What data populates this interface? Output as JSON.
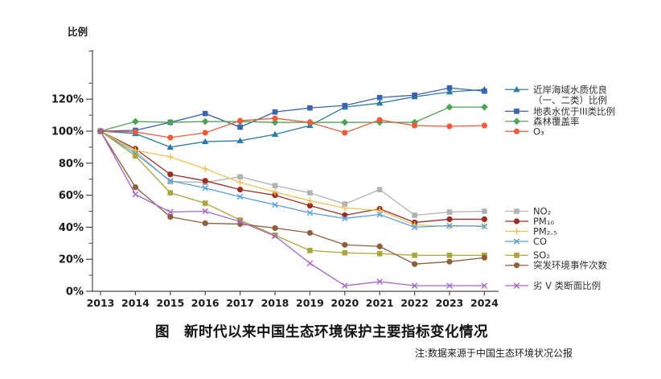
{
  "title": "图　新时代以来中国生态环境保护主要指标变化情况",
  "note": "注:数据来源于中国生态环境状况公报",
  "chart_data": {
    "type": "line",
    "title": "图　新时代以来中国生态环境保护主要指标变化情况",
    "note": "注:数据来源于中国生态环境状况公报",
    "ylabel": "比例",
    "xlabel": "",
    "x": [
      2013,
      2014,
      2015,
      2016,
      2017,
      2018,
      2019,
      2020,
      2021,
      2022,
      2023,
      2024
    ],
    "ylim": [
      0,
      150
    ],
    "ytick_major_step": 20,
    "ytick_minor_step": 10,
    "ytick_suffix": "%",
    "grid": false,
    "legend_position": "right",
    "baseline_note": "values are percentages relative to 2013 = 100%",
    "series": [
      {
        "id": "coastal-water",
        "name": "近岸海域水质优良（一、二类）比例",
        "legend_lines": [
          "近岸海域水质优良",
          "（一、二类）比例"
        ],
        "color": "#2e7ca3",
        "marker": "triangle",
        "values": [
          100,
          98.5,
          90,
          93.5,
          94,
          98,
          103.5,
          115,
          117.5,
          121.5,
          124.5,
          126
        ]
      },
      {
        "id": "surface-water",
        "name": "地表水优于III类比例",
        "color": "#3c63ad",
        "marker": "square",
        "values": [
          100,
          100.5,
          105.5,
          111,
          102.5,
          112,
          114.5,
          116,
          121,
          122.5,
          127,
          125
        ]
      },
      {
        "id": "forest-coverage",
        "name": "森林覆盖率",
        "color": "#4ca456",
        "marker": "diamond",
        "values": [
          100,
          106,
          105.5,
          106,
          106,
          105.5,
          105.5,
          105.5,
          105.5,
          105.5,
          115,
          115
        ]
      },
      {
        "id": "o3",
        "name": "O₃",
        "color": "#ee5b3c",
        "marker": "circle",
        "values": [
          100,
          99.5,
          96,
          99,
          106.5,
          108,
          105.5,
          99,
          107,
          103.5,
          103,
          103.5
        ]
      },
      {
        "id": "no2",
        "name": "NO₂",
        "color": "#b2b2b2",
        "marker": "square",
        "values": [
          100,
          87.5,
          68.5,
          68,
          71.5,
          66,
          61.5,
          54.5,
          63.5,
          47.5,
          49.5,
          50
        ]
      },
      {
        "id": "pm10",
        "name": "PM₁₀",
        "color": "#9b2d24",
        "marker": "circle",
        "values": [
          100,
          89,
          73,
          69,
          63.5,
          60,
          53.5,
          47.5,
          51.5,
          43,
          45,
          45
        ]
      },
      {
        "id": "pm2-5",
        "name": "PM₂.₅",
        "color": "#edc358",
        "marker": "plus",
        "values": [
          100,
          88,
          84,
          76.5,
          68,
          62,
          56.5,
          52,
          50.5,
          41.5,
          40.5,
          41
        ]
      },
      {
        "id": "co",
        "name": "CO",
        "color": "#5b9fd8",
        "marker": "x",
        "values": [
          100,
          86,
          69,
          64.5,
          59,
          54,
          49,
          45.5,
          48,
          40,
          41,
          40.5
        ]
      },
      {
        "id": "so2",
        "name": "SO₂",
        "color": "#a8a739",
        "marker": "square",
        "values": [
          100,
          84.5,
          61.5,
          55,
          44.5,
          35,
          25.5,
          24,
          23.5,
          22.5,
          22.5,
          22.5
        ]
      },
      {
        "id": "incidents",
        "name": "突发环境事件次数",
        "color": "#8f5f3c",
        "marker": "circle",
        "values": [
          100,
          65,
          46.5,
          42.5,
          42,
          39.5,
          36.5,
          29,
          28,
          17,
          18.5,
          21
        ]
      },
      {
        "id": "inferior-v",
        "name": "劣 V 类断面比例",
        "color": "#a667c6",
        "marker": "x",
        "values": [
          100,
          60.5,
          49.5,
          50,
          43.5,
          34.5,
          17.5,
          3.5,
          6,
          3.5,
          3.5,
          3.5
        ]
      }
    ]
  }
}
